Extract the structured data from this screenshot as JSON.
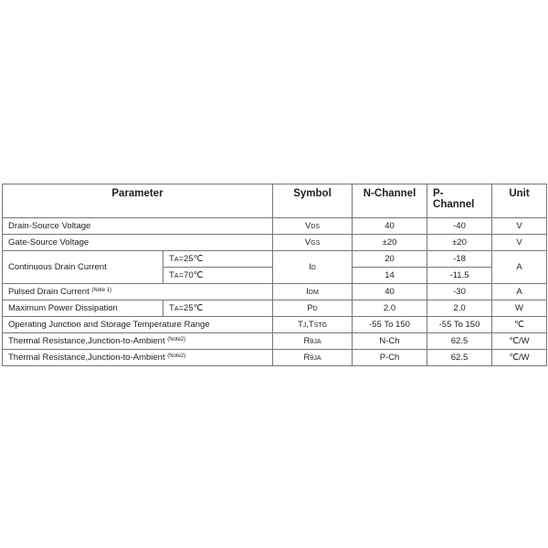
{
  "headers": {
    "parameter": "Parameter",
    "symbol": "Symbol",
    "n_channel": "N-Channel",
    "p_channel_1": "P-",
    "p_channel_2": "Channel",
    "unit": "Unit"
  },
  "rows": [
    {
      "param": "Drain-Source Voltage",
      "sym": "V",
      "sub": "DS",
      "n": "40",
      "p": "-40",
      "unit": "V"
    },
    {
      "param": "Gate-Source Voltage",
      "sym": "V",
      "sub": "GS",
      "n": "±20",
      "p": "±20",
      "unit": "V"
    },
    {
      "param": "Continuous Drain Current",
      "cond1": "T",
      "cond1sub": "A",
      "cond1val": "=25℃",
      "cond2": "T",
      "cond2sub": "A",
      "cond2val": "=70℃",
      "sym": "I",
      "sub": "D",
      "n1": "20",
      "p1": "-18",
      "n2": "14",
      "p2": "-11.5",
      "unit": "A"
    },
    {
      "param": "Pulsed Drain Current",
      "note": "(Note 1)",
      "sym": "I",
      "sub": "DM",
      "n": "40",
      "p": "-30",
      "unit": "A"
    },
    {
      "param": "Maximum Power Dissipation",
      "cond": "T",
      "condsub": "A",
      "condval": "=25℃",
      "sym": "P",
      "sub": "D",
      "n": "2.0",
      "p": "2.0",
      "unit": "W"
    },
    {
      "param": "Operating Junction and Storage Temperature Range",
      "sym": "T",
      "sub": "J",
      "sym2": ",T",
      "sub2": "STG",
      "n": "-55 To 150",
      "p": "-55 To 150",
      "unit": "℃"
    },
    {
      "param": "Thermal Resistance,Junction-to-Ambient",
      "note": "(Note2)",
      "sym": "R",
      "sub": "θJA",
      "n": "N-Ch",
      "p": "62.5",
      "unit": "℃/W"
    },
    {
      "param": "Thermal Resistance,Junction-to-Ambient",
      "note": "(Note2)",
      "sym": "R",
      "sub": "θJA",
      "n": "P-Ch",
      "p": "62.5",
      "unit": "℃/W"
    }
  ]
}
